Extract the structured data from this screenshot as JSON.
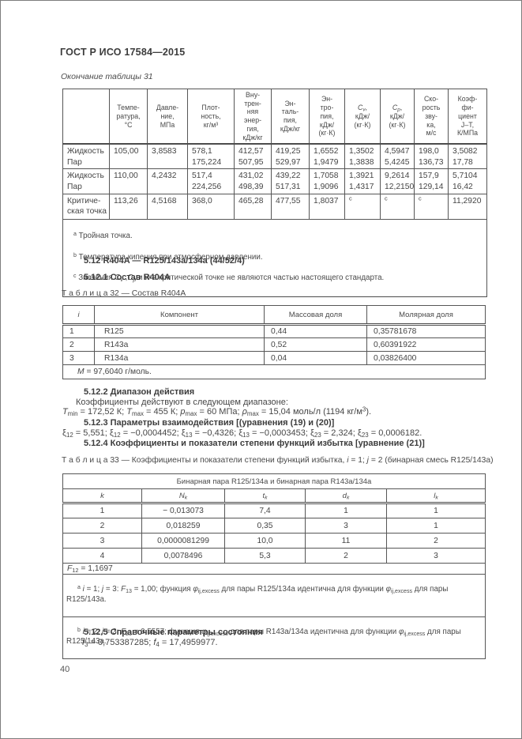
{
  "page": {
    "doc_code": "ГОСТ Р ИСО 17584—2015",
    "continuation": "Окончание таблицы 31",
    "page_number": "40"
  },
  "t31": {
    "headers": [
      "",
      "Темпе-\nратура,\n°С",
      "Давле-\nние,\nМПа",
      "Плот-\nность,\nкг/м³",
      "Вну-\nтрен-\nняя\nэнер-\nгия,\nкДж/кг",
      "Эн-\nталь-\nпия,\nкДж/кг",
      "Эн-\nтро-\nпия,\nкДж/\n(кг·К)",
      [
        {
          "t": "C",
          "s": "i"
        },
        {
          "t": "v",
          "s": "isub"
        },
        {
          "t": ",\nкДж/\n(кг·К)"
        }
      ],
      [
        {
          "t": "C",
          "s": "i"
        },
        {
          "t": "p",
          "s": "isub"
        },
        {
          "t": ",\nкДж/\n(кг·К)"
        }
      ],
      "Ско-\nрость\nзву-\nка,\nм/с",
      "Коэф-\nфи-\nциент\nJ–T,\nК/МПа"
    ],
    "rows": [
      [
        "Жидкость\nПар",
        "105,00",
        "3,8583",
        "578,1\n175,224",
        "412,57\n507,95",
        "419,25\n529,97",
        "1,6552\n1,9479",
        "1,3502\n1,3838",
        "4,5947\n5,4245",
        "198,0\n136,73",
        "3,5082\n17,78"
      ],
      [
        "Жидкость\nПар",
        "110,00",
        "4,2432",
        "517,4\n224,256",
        "431,02\n498,39",
        "439,22\n517,31",
        "1,7058\n1,9096",
        "1,3921\n1,4317",
        "9,2614\n12,2150",
        "157,9\n129,14",
        "5,7104\n16,42"
      ],
      [
        "Критиче-\nская точка",
        "113,26",
        "4,5168",
        "368,0",
        "465,28",
        "477,55",
        "1,8037",
        [
          {
            "t": "с",
            "s": "sup"
          }
        ],
        [
          {
            "t": "с",
            "s": "sup"
          }
        ],
        [
          {
            "t": "с",
            "s": "sup"
          }
        ],
        "11,2920"
      ]
    ],
    "footnotes": [
      [
        {
          "t": "a",
          "s": "sup"
        },
        {
          "t": " Тройная точка."
        }
      ],
      [
        {
          "t": "b",
          "s": "sup"
        },
        {
          "t": " Температура кипения при атмосферном давлении."
        }
      ],
      [
        {
          "t": "c",
          "s": "sup"
        },
        {
          "t": " Значения "
        },
        {
          "t": "C",
          "s": "i"
        },
        {
          "t": "v",
          "s": "isub"
        },
        {
          "t": " ,"
        },
        {
          "t": "C",
          "s": "i"
        },
        {
          "t": "p",
          "s": "isub"
        },
        {
          "t": " и "
        },
        {
          "t": "w",
          "s": "i"
        },
        {
          "t": " в критической точке не являются частью настоящего стандарта."
        }
      ]
    ]
  },
  "sections": {
    "s512": "5.12 R404A — R125/143a/134a (44/52/4)",
    "s5121": "5.12.1 Состав R404A",
    "s5122": "5.12.2 Диапазон действия",
    "p_range": "Коэффициенты действуют в следующем диапазоне:",
    "p_limits": [
      {
        "t": "T",
        "s": "i"
      },
      {
        "t": "min",
        "s": "sub"
      },
      {
        "t": " = 172,52 К; "
      },
      {
        "t": "T",
        "s": "i"
      },
      {
        "t": "max",
        "s": "sub"
      },
      {
        "t": " = 455 К; "
      },
      {
        "t": "p",
        "s": "i"
      },
      {
        "t": "max",
        "s": "sub"
      },
      {
        "t": " = 60 МПа; "
      },
      {
        "t": "ρ",
        "s": "i"
      },
      {
        "t": "max",
        "s": "sub"
      },
      {
        "t": " = 15,04 моль/л (1194 кг/м"
      },
      {
        "t": "3",
        "s": "sup"
      },
      {
        "t": ")."
      }
    ],
    "s5123": "5.12.3 Параметры взаимодействия [(уравнения (19) и (20)]",
    "p_xi": [
      {
        "t": "ξ"
      },
      {
        "t": "12",
        "s": "sub"
      },
      {
        "t": " = 5,551; "
      },
      {
        "t": "ξ"
      },
      {
        "t": "12",
        "s": "sub"
      },
      {
        "t": " = −0,0004452; "
      },
      {
        "t": "ξ"
      },
      {
        "t": "13",
        "s": "sub"
      },
      {
        "t": " = −0,4326; "
      },
      {
        "t": "ξ"
      },
      {
        "t": "13",
        "s": "sub"
      },
      {
        "t": " = −0,0003453; "
      },
      {
        "t": "ξ"
      },
      {
        "t": "23",
        "s": "sub"
      },
      {
        "t": " = 2,324; "
      },
      {
        "t": "ξ"
      },
      {
        "t": "23",
        "s": "sub"
      },
      {
        "t": " = 0,0006182."
      }
    ],
    "s5124": "5.12.4 Коэффициенты и показатели степени функций избытка [уравнение (21)]",
    "s5125": "5.12.5 Справочные параметры состояния",
    "p_f": [
      {
        "t": "f",
        "s": "i"
      },
      {
        "t": "3",
        "s": "sub"
      },
      {
        "t": " = 0,753387285; "
      },
      {
        "t": "f",
        "s": "i"
      },
      {
        "t": "4",
        "s": "sub"
      },
      {
        "t": " = 17,4959977."
      }
    ]
  },
  "t32": {
    "caption": "Т а б л и ц а  32 — Состав R404A",
    "headers": [
      [
        {
          "t": "i",
          "s": "i"
        }
      ],
      "Компонент",
      "Массовая доля",
      "Молярная доля"
    ],
    "rows": [
      [
        "1",
        "R125",
        "0,44",
        "0,35781678"
      ],
      [
        "2",
        "R143a",
        "0,52",
        "0,60391922"
      ],
      [
        "3",
        "R134a",
        "0,04",
        "0,03826400"
      ]
    ],
    "footer": [
      {
        "t": "M",
        "s": "i"
      },
      {
        "t": " = 97,6040 г/моль."
      }
    ]
  },
  "t33": {
    "caption": [
      {
        "t": "Т а б л и ц а  33 — Коэффициенты и показатели степени функций избытка, "
      },
      {
        "t": "i",
        "s": "i"
      },
      {
        "t": " = 1; "
      },
      {
        "t": "j",
        "s": "i"
      },
      {
        "t": " = 2 (бинарная смесь R125/143а)"
      }
    ],
    "span_header": "Бинарная пара R125/134а и бинарная пара R143а/134а",
    "headers": [
      [
        {
          "t": "k",
          "s": "i"
        }
      ],
      [
        {
          "t": "N",
          "s": "i"
        },
        {
          "t": "k",
          "s": "isub"
        }
      ],
      [
        {
          "t": "t",
          "s": "i"
        },
        {
          "t": "k",
          "s": "isub"
        }
      ],
      [
        {
          "t": "d",
          "s": "i"
        },
        {
          "t": "k",
          "s": "isub"
        }
      ],
      [
        {
          "t": "l",
          "s": "i"
        },
        {
          "t": "k",
          "s": "isub"
        }
      ]
    ],
    "rows": [
      [
        "1",
        "− 0,013073",
        "7,4",
        "1",
        "1"
      ],
      [
        "2",
        "0,018259",
        "0,35",
        "3",
        "1"
      ],
      [
        "3",
        "0,0000081299",
        "10,0",
        "11",
        "2"
      ],
      [
        "4",
        "0,0078496",
        "5,3",
        "2",
        "3"
      ]
    ],
    "f12": [
      {
        "t": "F",
        "s": "i"
      },
      {
        "t": "12",
        "s": "sub"
      },
      {
        "t": " = 1,1697"
      }
    ],
    "footnotes": [
      [
        {
          "t": "а",
          "s": "sup"
        },
        {
          "t": " "
        },
        {
          "t": "i",
          "s": "i"
        },
        {
          "t": " = 1; "
        },
        {
          "t": "j",
          "s": "i"
        },
        {
          "t": " = 3: "
        },
        {
          "t": "F",
          "s": "i"
        },
        {
          "t": "13",
          "s": "sub"
        },
        {
          "t": " = 1,00; функция "
        },
        {
          "t": "φ",
          "s": "i"
        },
        {
          "t": "ij,excess",
          "s": "sub"
        },
        {
          "t": " для пары R125/134а идентична для функции "
        },
        {
          "t": "φ",
          "s": "i"
        },
        {
          "t": "ij,excess",
          "s": "sub"
        },
        {
          "t": " для пары R125/143а."
        }
      ],
      [
        {
          "t": "b",
          "s": "sup"
        },
        {
          "t": " "
        },
        {
          "t": "i",
          "s": "i"
        },
        {
          "t": " = 2; "
        },
        {
          "t": "j",
          "s": "i"
        },
        {
          "t": " = 3: "
        },
        {
          "t": "F",
          "s": "i"
        },
        {
          "t": "23",
          "s": "sub"
        },
        {
          "t": " = 0,5557; функция "
        },
        {
          "t": "φ",
          "s": "i"
        },
        {
          "t": "ij,excess",
          "s": "sub"
        },
        {
          "t": " для пары R143а/134а идентична для функции "
        },
        {
          "t": "φ",
          "s": "i"
        },
        {
          "t": "ij,excess",
          "s": "sub"
        },
        {
          "t": " для пары R125/143а."
        }
      ]
    ]
  }
}
